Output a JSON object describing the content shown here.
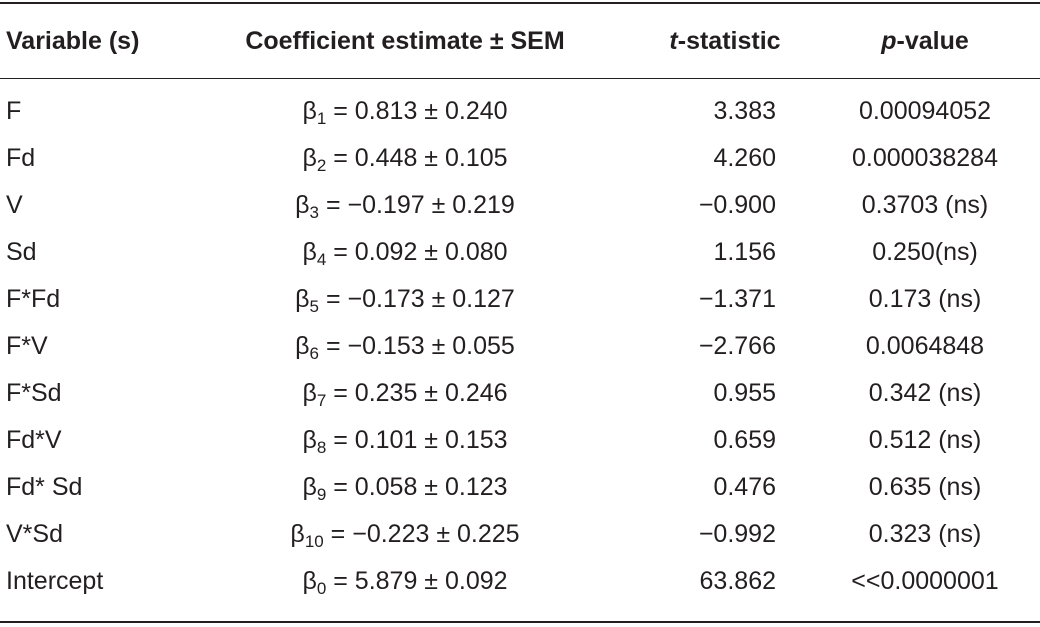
{
  "headers": {
    "variable": "Variable (s)",
    "coefficient": "Coefficient estimate ± SEM",
    "t_italic": "t",
    "t_rest": "-statistic",
    "p_italic": "p",
    "p_rest": "-value"
  },
  "rows": [
    {
      "variable": "F",
      "beta_symbol": "β",
      "beta_index": "1",
      "coefficient": " = 0.813 ± 0.240",
      "t": "3.383",
      "p": "0.00094052"
    },
    {
      "variable": "Fd",
      "beta_symbol": "β",
      "beta_index": "2",
      "coefficient": " = 0.448 ±  0.105",
      "t": "4.260",
      "p": "0.000038284"
    },
    {
      "variable": "V",
      "beta_symbol": "β",
      "beta_index": "3",
      "coefficient": " = −0.197 ±  0.219",
      "t": "−0.900",
      "p": "0.3703 (ns)"
    },
    {
      "variable": "Sd",
      "beta_symbol": "β",
      "beta_index": "4",
      "coefficient": " = 0.092 ± 0.080",
      "t": "1.156",
      "p": "0.250(ns)"
    },
    {
      "variable": "F*Fd",
      "beta_symbol": "β",
      "beta_index": "5",
      "coefficient": " = −0.173 ± 0.127",
      "t": "−1.371",
      "p": "0.173 (ns)"
    },
    {
      "variable": "F*V",
      "beta_symbol": "β",
      "beta_index": "6",
      "coefficient": " = −0.153 ± 0.055",
      "t": "−2.766",
      "p": "0.0064848"
    },
    {
      "variable": "F*Sd",
      "beta_symbol": "β",
      "beta_index": "7",
      "coefficient": " = 0.235 ±  0.246",
      "t": "0.955",
      "p": "0.342 (ns)"
    },
    {
      "variable": "Fd*V",
      "beta_symbol": "β",
      "beta_index": "8",
      "coefficient": " = 0.101 ±  0.153",
      "t": "0.659",
      "p": "0.512 (ns)"
    },
    {
      "variable": "Fd* Sd",
      "beta_symbol": "β",
      "beta_index": "9",
      "coefficient": " = 0.058 ±  0.123",
      "t": "0.476",
      "p": "0.635 (ns)"
    },
    {
      "variable": "V*Sd",
      "beta_symbol": "β",
      "beta_index": "10",
      "coefficient": " = −0.223 ±  0.225",
      "t": "−0.992",
      "p": "0.323 (ns)"
    },
    {
      "variable": "Intercept",
      "beta_symbol": "β",
      "beta_index": "0",
      "coefficient": " = 5.879 ± 0.092",
      "t": "63.862",
      "p": "<<0.0000001"
    }
  ]
}
